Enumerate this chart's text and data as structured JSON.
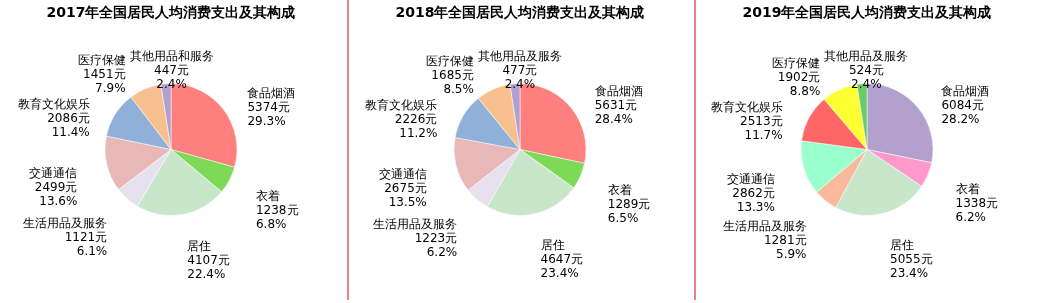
{
  "chart_data": [
    {
      "type": "pie",
      "title": "2017年全国居民人均消费支出及其构成",
      "categories": [
        "食品烟酒",
        "衣着",
        "居住",
        "生活用品及服务",
        "交通通信",
        "教育文化娱乐",
        "医疗保健",
        "其他用品和服务"
      ],
      "values": [
        5374,
        1238,
        4107,
        1121,
        2499,
        2086,
        1451,
        447
      ],
      "colors": [
        "#ff7f7f",
        "#7ed957",
        "#c8e6c9",
        "#e6e0ef",
        "#e8b8b8",
        "#8fb0d8",
        "#f9c08f",
        "#b0a0d0"
      ],
      "value_labels": [
        "5374元\n29.3%",
        "1238元\n6.8%",
        "4107元\n22.4%",
        "1121元\n6.1%",
        "2499元\n13.6%",
        "2086元\n11.4%",
        "1451元\n7.9%",
        "447元\n2.4%"
      ]
    },
    {
      "type": "pie",
      "title": "2018年全国居民人均消费支出及其构成",
      "categories": [
        "食品烟酒",
        "衣着",
        "居住",
        "生活用品及服务",
        "交通通信",
        "教育文化娱乐",
        "医疗保健",
        "其他用品及服务"
      ],
      "values": [
        5631,
        1289,
        4647,
        1223,
        2675,
        2226,
        1685,
        477
      ],
      "colors": [
        "#ff7f7f",
        "#7ed957",
        "#c8e6c9",
        "#e6e0ef",
        "#e8b8b8",
        "#8fb0d8",
        "#f9c08f",
        "#b0a0d0"
      ],
      "value_labels": [
        "5631元\n28.4%",
        "1289元\n6.5%",
        "4647元\n23.4%",
        "1223元\n6.2%",
        "2675元\n13.5%",
        "2226元\n11.2%",
        "1685元\n8.5%",
        "477元\n2.4%"
      ]
    },
    {
      "type": "pie",
      "title": "2019年全国居民人均消费支出及其构成",
      "categories": [
        "食品烟酒",
        "衣着",
        "居住",
        "生活用品及服务",
        "交通通信",
        "教育文化娱乐",
        "医疗保健",
        "其他用品及服务"
      ],
      "values": [
        6084,
        1338,
        5055,
        1281,
        2862,
        2513,
        1902,
        524
      ],
      "colors": [
        "#b3a0cc",
        "#ff99cc",
        "#c8e6c9",
        "#f9b99a",
        "#99ffcc",
        "#ff6666",
        "#ffff33",
        "#66cc66"
      ],
      "value_labels": [
        "6084元\n28.2%",
        "1338元\n6.2%",
        "5055元\n23.4%",
        "1281元\n5.9%",
        "2862元\n13.3%",
        "2513元\n11.7%",
        "1902元\n8.8%",
        "524元\n2.4%"
      ]
    }
  ]
}
